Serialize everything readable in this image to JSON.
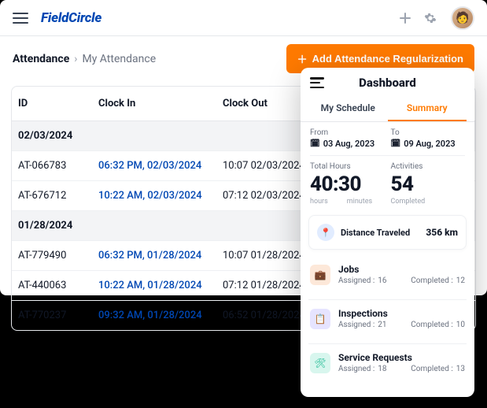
{
  "colors": {
    "accent": "#ff7a00",
    "brand": "#0047b3",
    "border": "#e5e7eb",
    "muted": "#6b7280"
  },
  "header": {
    "brand": "FieldCircle"
  },
  "breadcrumb": {
    "root": "Attendance",
    "leaf": "My Attendance"
  },
  "actions": {
    "add_regularization": "Add Attendance Regularization"
  },
  "table": {
    "columns": {
      "id": "ID",
      "clock_in": "Clock In",
      "clock_out": "Clock Out"
    },
    "groups": [
      {
        "date": "02/03/2024",
        "rows": [
          {
            "id": "AT-066783",
            "clock_in": "06:32 PM, 02/03/2024",
            "clock_out": "10:07 02/03/2024"
          },
          {
            "id": "AT-676712",
            "clock_in": "10:22 AM, 02/03/2024",
            "clock_out": "07:12 02/03/2024"
          }
        ]
      },
      {
        "date": "01/28/2024",
        "rows": [
          {
            "id": "AT-779490",
            "clock_in": "06:32 PM, 01/28/2024",
            "clock_out": "10:07 01/28/2024"
          },
          {
            "id": "AT-440063",
            "clock_in": "10:22 AM, 01/28/2024",
            "clock_out": "07:12 01/28/2024"
          },
          {
            "id": "AT-770237",
            "clock_in": "09:32 AM, 01/28/2024",
            "clock_out": "06:52 01/28/2024"
          }
        ]
      }
    ]
  },
  "dashboard": {
    "title": "Dashboard",
    "tabs": {
      "schedule": "My Schedule",
      "summary": "Summary"
    },
    "from_label": "From",
    "to_label": "To",
    "from": "03 Aug, 2023",
    "to": "09 Aug, 2023",
    "total_hours_label": "Total Hours",
    "activities_label": "Activities",
    "hours_value": "40:30",
    "hours_unit1": "hours",
    "hours_unit2": "minutes",
    "activities_value": "54",
    "activities_unit": "Completed",
    "distance_label": "Distance Traveled",
    "distance_value": "356 km",
    "items": [
      {
        "title": "Jobs",
        "assigned_label": "Assigned :",
        "assigned": "16",
        "completed_label": "Completed :",
        "completed": "12",
        "icon_bg": "#fde8d9",
        "icon_color": "#ff7a00"
      },
      {
        "title": "Inspections",
        "assigned_label": "Assigned :",
        "assigned": "21",
        "completed_label": "Completed :",
        "completed": "10",
        "icon_bg": "#e6e4ff",
        "icon_color": "#6b5bff"
      },
      {
        "title": "Service Requests",
        "assigned_label": "Assigned :",
        "assigned": "18",
        "completed_label": "Completed :",
        "completed": "13",
        "icon_bg": "#d8f6ee",
        "icon_color": "#17b890"
      }
    ]
  }
}
